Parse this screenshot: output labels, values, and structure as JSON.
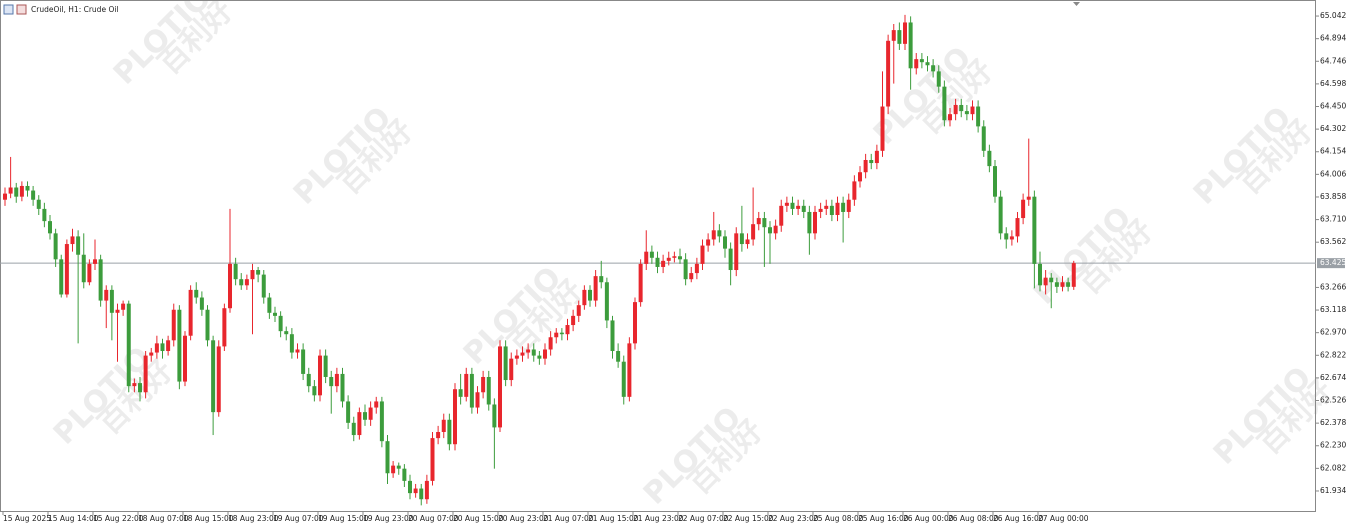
{
  "chart_data": {
    "type": "candlestick",
    "title": "CrudeOil, H1:  Crude Oil",
    "x": [
      "15 Aug 2025",
      null,
      null,
      null,
      null,
      null,
      null,
      null,
      "15 Aug 14:00",
      null,
      null,
      null,
      null,
      null,
      null,
      null,
      "15 Aug 22:00",
      null,
      null,
      null,
      null,
      null,
      null,
      null,
      "18 Aug 07:00",
      null,
      null,
      null,
      null,
      null,
      null,
      null,
      "18 Aug 15:00",
      null,
      null,
      null,
      null,
      null,
      null,
      null,
      "18 Aug 23:00",
      null,
      null,
      null,
      null,
      null,
      null,
      null,
      "19 Aug 07:00",
      null,
      null,
      null,
      null,
      null,
      null,
      null,
      "19 Aug 15:00",
      null,
      null,
      null,
      null,
      null,
      null,
      null,
      "19 Aug 23:00",
      null,
      null,
      null,
      null,
      null,
      null,
      null,
      "20 Aug 07:00",
      null,
      null,
      null,
      null,
      null,
      null,
      null,
      "20 Aug 15:00",
      null,
      null,
      null,
      null,
      null,
      null,
      null,
      "20 Aug 23:00",
      null,
      null,
      null,
      null,
      null,
      null,
      null,
      "21 Aug 07:00",
      null,
      null,
      null,
      null,
      null,
      null,
      null,
      "21 Aug 15:00",
      null,
      null,
      null,
      null,
      null,
      null,
      null,
      "21 Aug 23:00",
      null,
      null,
      null,
      null,
      null,
      null,
      null,
      "22 Aug 07:00",
      null,
      null,
      null,
      null,
      null,
      null,
      null,
      "22 Aug 15:00",
      null,
      null,
      null,
      null,
      null,
      null,
      null,
      "22 Aug 23:00",
      null,
      null,
      null,
      null,
      null,
      null,
      null,
      "25 Aug 08:00",
      null,
      null,
      null,
      null,
      null,
      null,
      null,
      "25 Aug 16:00",
      null,
      null,
      null,
      null,
      null,
      null,
      null,
      "26 Aug 00:00",
      null,
      null,
      null,
      null,
      null,
      null,
      null,
      "26 Aug 08:00",
      null,
      null,
      null,
      null,
      null,
      null,
      null,
      "26 Aug 16:00",
      null,
      null,
      null,
      null,
      null,
      null,
      null,
      "27 Aug 00:00",
      null,
      null,
      null,
      null,
      null,
      null
    ],
    "open": [
      63.84,
      63.88,
      63.92,
      63.86,
      63.93,
      63.9,
      63.84,
      63.78,
      63.7,
      63.62,
      63.45,
      63.22,
      63.55,
      63.6,
      63.48,
      63.3,
      63.42,
      63.45,
      63.18,
      63.25,
      63.1,
      63.12,
      63.16,
      62.62,
      62.64,
      62.58,
      62.82,
      62.84,
      62.9,
      62.85,
      62.92,
      63.12,
      62.65,
      62.95,
      63.25,
      63.2,
      63.12,
      62.92,
      62.45,
      62.88,
      63.13,
      63.42,
      63.32,
      63.28,
      63.32,
      63.38,
      63.35,
      63.2,
      63.1,
      63.08,
      62.98,
      62.96,
      62.84,
      62.86,
      62.7,
      62.62,
      62.56,
      62.82,
      62.68,
      62.62,
      62.7,
      62.52,
      62.38,
      62.3,
      62.45,
      62.4,
      62.48,
      62.52,
      62.26,
      62.05,
      62.1,
      62.08,
      62.0,
      61.92,
      61.95,
      61.88,
      62.0,
      62.28,
      62.32,
      62.4,
      62.24,
      62.6,
      62.55,
      62.7,
      62.48,
      62.58,
      62.68,
      62.5,
      62.35,
      62.88,
      62.66,
      62.8,
      62.82,
      62.84,
      62.86,
      62.82,
      62.8,
      62.86,
      62.94,
      62.97,
      62.96,
      63.02,
      63.08,
      63.15,
      63.25,
      63.18,
      63.34,
      63.3,
      63.05,
      62.85,
      62.78,
      62.55,
      62.9,
      63.17,
      63.42,
      63.5,
      63.46,
      63.4,
      63.44,
      63.46,
      63.47,
      63.45,
      63.32,
      63.36,
      63.42,
      63.54,
      63.58,
      63.64,
      63.6,
      63.52,
      63.38,
      63.62,
      63.55,
      63.58,
      63.68,
      63.72,
      63.66,
      63.62,
      63.67,
      63.8,
      63.82,
      63.78,
      63.8,
      63.76,
      63.62,
      63.76,
      63.78,
      63.8,
      63.74,
      63.82,
      63.76,
      63.84,
      63.96,
      64.02,
      64.1,
      64.08,
      64.16,
      64.45,
      64.88,
      64.95,
      64.86,
      65.0,
      64.7,
      64.76,
      64.74,
      64.72,
      64.68,
      64.58,
      64.36,
      64.4,
      64.46,
      64.42,
      64.4,
      64.45,
      64.32,
      64.16,
      64.06,
      63.86,
      63.62,
      63.58,
      63.6,
      63.72,
      63.84,
      63.86,
      63.42,
      63.28,
      63.33,
      63.3,
      63.27,
      63.3,
      63.27
    ],
    "high": [
      63.92,
      64.12,
      63.95,
      63.96,
      63.96,
      63.93,
      63.87,
      63.82,
      63.74,
      63.65,
      63.48,
      63.58,
      63.65,
      63.64,
      63.62,
      63.45,
      63.58,
      63.48,
      63.28,
      63.28,
      63.16,
      63.18,
      63.18,
      62.67,
      62.68,
      62.85,
      62.87,
      62.95,
      62.93,
      62.95,
      63.16,
      63.15,
      62.98,
      63.28,
      63.3,
      63.24,
      63.15,
      62.95,
      62.92,
      63.16,
      63.78,
      63.46,
      63.36,
      63.35,
      63.42,
      63.4,
      63.38,
      63.23,
      63.14,
      63.11,
      63.01,
      63.0,
      62.9,
      62.9,
      62.74,
      62.66,
      62.86,
      62.86,
      62.72,
      62.74,
      62.74,
      62.56,
      62.42,
      62.48,
      62.5,
      62.52,
      62.55,
      62.55,
      62.3,
      62.13,
      62.12,
      62.11,
      62.04,
      61.98,
      61.98,
      62.04,
      62.32,
      62.36,
      62.44,
      62.44,
      62.64,
      62.7,
      62.74,
      62.74,
      62.62,
      62.72,
      62.72,
      62.54,
      62.92,
      62.92,
      62.84,
      62.86,
      62.88,
      62.9,
      62.9,
      62.85,
      62.9,
      62.98,
      63.0,
      63.0,
      63.06,
      63.12,
      63.18,
      63.28,
      63.28,
      63.38,
      63.44,
      63.33,
      63.08,
      62.9,
      62.82,
      62.94,
      63.2,
      63.45,
      63.64,
      63.54,
      63.5,
      63.48,
      63.5,
      63.5,
      63.52,
      63.49,
      63.4,
      63.46,
      63.58,
      63.62,
      63.76,
      63.68,
      63.64,
      63.56,
      63.66,
      63.8,
      63.62,
      63.92,
      63.76,
      63.76,
      63.7,
      63.71,
      63.84,
      63.86,
      63.86,
      63.84,
      63.84,
      63.8,
      63.8,
      63.82,
      63.84,
      63.84,
      63.86,
      63.86,
      63.88,
      64.0,
      64.06,
      64.14,
      64.14,
      64.2,
      64.68,
      64.92,
      64.99,
      65.0,
      65.05,
      65.04,
      64.8,
      64.8,
      64.78,
      64.76,
      64.72,
      64.62,
      64.44,
      64.5,
      64.5,
      64.46,
      64.49,
      64.49,
      64.36,
      64.2,
      64.1,
      63.9,
      63.66,
      63.64,
      63.76,
      63.88,
      64.24,
      63.9,
      63.5,
      63.38,
      63.36,
      63.33,
      63.34,
      63.33,
      63.44
    ],
    "low": [
      63.8,
      63.85,
      63.82,
      63.83,
      63.86,
      63.8,
      63.74,
      63.66,
      63.58,
      63.4,
      63.2,
      63.2,
      63.5,
      62.9,
      63.26,
      63.28,
      63.38,
      63.14,
      63.0,
      62.92,
      62.78,
      63.08,
      62.58,
      62.58,
      62.52,
      62.54,
      62.78,
      62.8,
      62.8,
      62.82,
      62.88,
      62.6,
      62.62,
      62.92,
      63.16,
      63.08,
      62.88,
      62.3,
      62.42,
      62.85,
      63.1,
      63.28,
      63.25,
      63.25,
      62.96,
      63.3,
      63.16,
      63.06,
      63.04,
      62.94,
      62.92,
      62.8,
      62.8,
      62.66,
      62.58,
      62.52,
      62.52,
      62.64,
      62.44,
      62.58,
      62.48,
      62.34,
      62.26,
      62.27,
      62.36,
      62.36,
      62.44,
      62.22,
      61.98,
      62.02,
      62.04,
      61.96,
      61.88,
      61.89,
      61.84,
      61.85,
      61.97,
      62.24,
      62.28,
      62.2,
      62.2,
      62.5,
      62.52,
      62.44,
      62.44,
      62.54,
      62.46,
      62.08,
      62.32,
      62.62,
      62.62,
      62.76,
      62.78,
      62.8,
      62.78,
      62.76,
      62.76,
      62.82,
      62.9,
      62.92,
      62.92,
      62.98,
      63.04,
      63.12,
      63.14,
      63.14,
      63.26,
      63.0,
      62.8,
      62.74,
      62.5,
      62.52,
      62.86,
      63.14,
      63.38,
      63.42,
      63.36,
      63.36,
      63.41,
      63.43,
      63.42,
      63.28,
      63.3,
      63.32,
      63.38,
      63.5,
      63.54,
      63.56,
      63.46,
      63.28,
      63.34,
      63.5,
      63.52,
      63.54,
      63.64,
      63.4,
      63.42,
      63.58,
      63.63,
      63.76,
      63.74,
      63.74,
      63.72,
      63.48,
      63.58,
      63.72,
      63.74,
      63.7,
      63.7,
      63.56,
      63.72,
      63.8,
      63.92,
      63.98,
      64.04,
      64.04,
      64.12,
      64.4,
      64.6,
      64.82,
      64.82,
      64.56,
      64.66,
      64.7,
      64.68,
      64.64,
      64.54,
      64.32,
      64.32,
      64.36,
      64.38,
      64.36,
      64.36,
      64.28,
      64.12,
      64.02,
      63.82,
      63.58,
      63.52,
      63.54,
      63.56,
      63.68,
      63.8,
      63.26,
      63.24,
      63.22,
      63.13,
      63.23,
      63.24,
      63.24,
      63.25
    ],
    "close": [
      63.88,
      63.92,
      63.86,
      63.93,
      63.9,
      63.84,
      63.78,
      63.7,
      63.62,
      63.45,
      63.22,
      63.55,
      63.6,
      63.48,
      63.3,
      63.42,
      63.45,
      63.18,
      63.25,
      63.1,
      63.12,
      63.16,
      62.62,
      62.64,
      62.58,
      62.82,
      62.84,
      62.9,
      62.85,
      62.92,
      63.12,
      62.65,
      62.95,
      63.25,
      63.2,
      63.12,
      62.92,
      62.45,
      62.88,
      63.13,
      63.42,
      63.32,
      63.28,
      63.32,
      63.38,
      63.35,
      63.2,
      63.1,
      63.08,
      62.98,
      62.96,
      62.84,
      62.86,
      62.7,
      62.62,
      62.56,
      62.82,
      62.68,
      62.62,
      62.7,
      62.52,
      62.38,
      62.3,
      62.45,
      62.4,
      62.48,
      62.52,
      62.26,
      62.05,
      62.1,
      62.08,
      62.0,
      61.92,
      61.95,
      61.88,
      62.0,
      62.28,
      62.32,
      62.4,
      62.24,
      62.6,
      62.55,
      62.7,
      62.48,
      62.58,
      62.68,
      62.5,
      62.35,
      62.88,
      62.66,
      62.8,
      62.82,
      62.84,
      62.86,
      62.82,
      62.8,
      62.86,
      62.94,
      62.97,
      62.96,
      63.02,
      63.08,
      63.15,
      63.25,
      63.18,
      63.34,
      63.3,
      63.05,
      62.85,
      62.78,
      62.55,
      62.9,
      63.17,
      63.42,
      63.5,
      63.46,
      63.4,
      63.44,
      63.46,
      63.47,
      63.45,
      63.32,
      63.36,
      63.42,
      63.54,
      63.58,
      63.64,
      63.6,
      63.52,
      63.38,
      63.62,
      63.55,
      63.58,
      63.68,
      63.72,
      63.66,
      63.62,
      63.67,
      63.8,
      63.82,
      63.78,
      63.8,
      63.76,
      63.62,
      63.76,
      63.78,
      63.8,
      63.74,
      63.82,
      63.76,
      63.84,
      63.96,
      64.02,
      64.1,
      64.08,
      64.16,
      64.45,
      64.88,
      64.95,
      64.86,
      65.0,
      64.7,
      64.76,
      64.74,
      64.72,
      64.68,
      64.58,
      64.36,
      64.4,
      64.46,
      64.42,
      64.4,
      64.45,
      64.32,
      64.16,
      64.06,
      63.86,
      63.62,
      63.58,
      63.6,
      63.72,
      63.84,
      63.86,
      63.42,
      63.28,
      63.33,
      63.3,
      63.27,
      63.3,
      63.27,
      63.425
    ],
    "up_color": "#e8262d",
    "down_color": "#3c9c3c",
    "ylim": [
      61.803,
      65.147
    ],
    "yticks": [
      65.042,
      64.894,
      64.746,
      64.598,
      {
        "value": 64.45,
        "label": "64.450"
      },
      64.302,
      64.154,
      64.006,
      63.858,
      {
        "value": 63.71,
        "label": "63.710"
      },
      63.562,
      63.266,
      63.118,
      {
        "value": 62.97,
        "label": "62.970"
      },
      62.822,
      62.674,
      62.526,
      62.378,
      {
        "value": 62.23,
        "label": "62.230"
      },
      62.082,
      61.934
    ],
    "current_price": 63.425,
    "watermark": {
      "brand": "PLOTIO",
      "name": "百利好"
    }
  }
}
